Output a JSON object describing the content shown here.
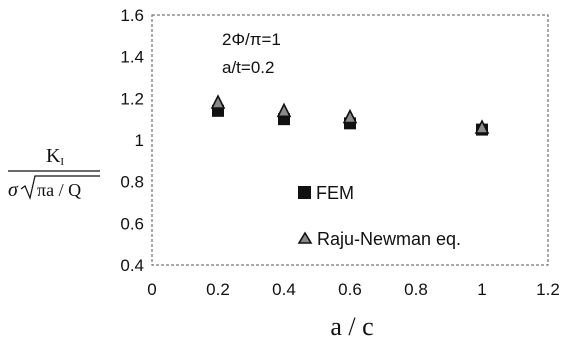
{
  "chart_data": {
    "type": "scatter",
    "annotations": [
      "2Φ/π=1",
      "a/t=0.2"
    ],
    "xlabel": "a / c",
    "ylabel": {
      "numerator": "K",
      "numerator_subscript": "I",
      "denominator_prefix": "σ",
      "denominator_radicand": "πa / Q"
    },
    "xlim": [
      0,
      1.2
    ],
    "ylim": [
      0.4,
      1.6
    ],
    "x_ticks": [
      "0",
      "0.2",
      "0.4",
      "0.6",
      "0.8",
      "1",
      "1.2"
    ],
    "y_ticks": [
      "0.4",
      "0.6",
      "0.8",
      "1",
      "1.2",
      "1.4",
      "1.6"
    ],
    "grid": false,
    "legend_position": "lower-right",
    "series": [
      {
        "name": "FEM",
        "marker": "filled-square",
        "color": "#111111",
        "points": [
          {
            "x": 0.2,
            "y": 1.14
          },
          {
            "x": 0.4,
            "y": 1.1
          },
          {
            "x": 0.6,
            "y": 1.08
          },
          {
            "x": 1.0,
            "y": 1.05
          }
        ]
      },
      {
        "name": "Raju-Newman eq.",
        "marker": "triangle",
        "color": "#111111",
        "points": [
          {
            "x": 0.2,
            "y": 1.18
          },
          {
            "x": 0.4,
            "y": 1.14
          },
          {
            "x": 0.6,
            "y": 1.11
          },
          {
            "x": 1.0,
            "y": 1.06
          }
        ]
      }
    ]
  }
}
